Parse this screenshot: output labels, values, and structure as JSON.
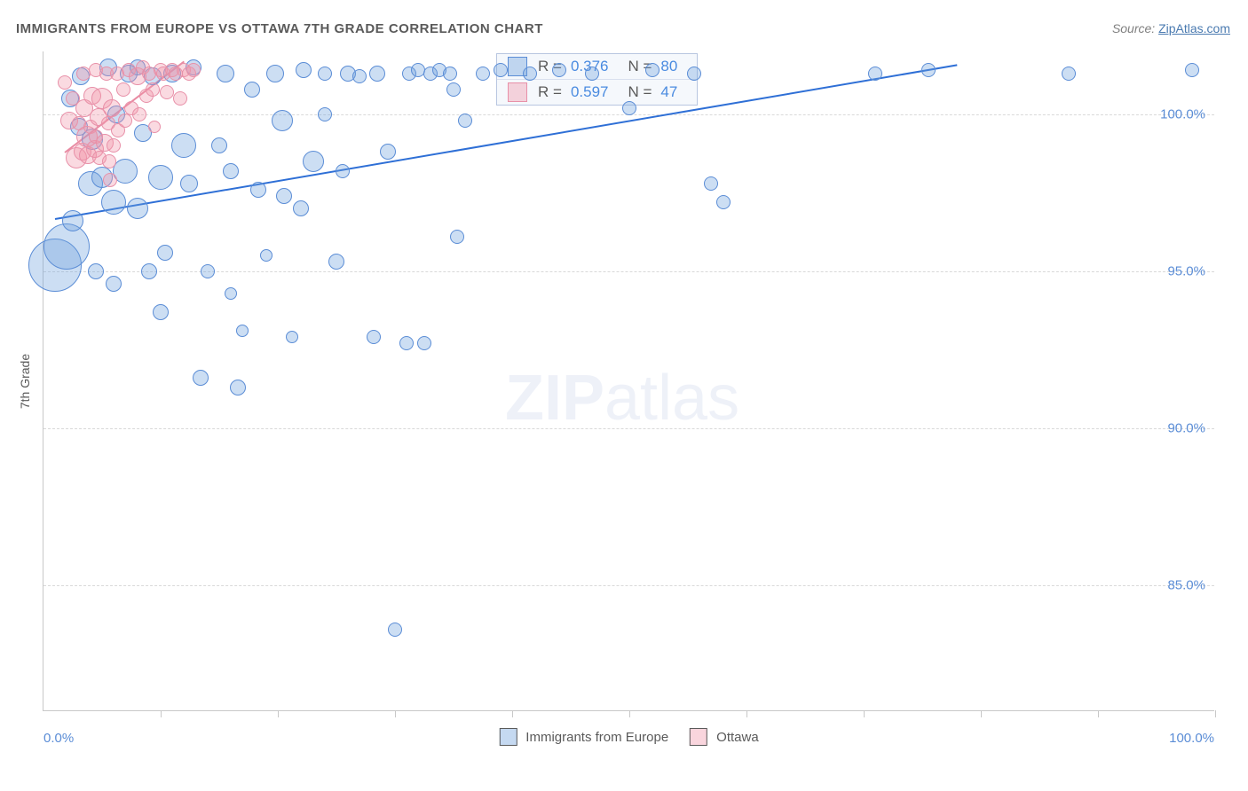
{
  "chart": {
    "type": "scatter",
    "title": "IMMIGRANTS FROM EUROPE VS OTTAWA 7TH GRADE CORRELATION CHART",
    "source_prefix": "Source: ",
    "source_link": "ZipAtlas.com",
    "y_axis_title": "7th Grade",
    "x_min_label": "0.0%",
    "x_max_label": "100.0%",
    "xlim": [
      0,
      100
    ],
    "ylim": [
      81,
      102
    ],
    "y_ticks": [
      85.0,
      90.0,
      95.0,
      100.0
    ],
    "y_tick_labels": [
      "85.0%",
      "90.0%",
      "95.0%",
      "100.0%"
    ],
    "x_ticks": [
      10,
      20,
      30,
      40,
      50,
      60,
      70,
      80,
      90,
      100
    ],
    "background_color": "#ffffff",
    "grid_color": "#d9d9d9",
    "axis_color": "#c8c8c8",
    "tick_label_color": "#5b8dd6",
    "tick_label_fontsize": 15,
    "watermark": "ZIPatlas",
    "legend_top": {
      "rows": [
        {
          "swatch": "blue",
          "r_label": "R =",
          "r_val": "0.376",
          "n_label": "N =",
          "n_val": "80"
        },
        {
          "swatch": "pink",
          "r_label": "R =",
          "r_val": "0.597",
          "n_label": "N =",
          "n_val": "47"
        }
      ]
    },
    "legend_bottom": {
      "items": [
        {
          "swatch": "blue",
          "label": "Immigrants from Europe"
        },
        {
          "swatch": "pink",
          "label": "Ottawa"
        }
      ]
    },
    "series": [
      {
        "name": "Immigrants from Europe",
        "color_fill": "rgba(110,160,220,0.35)",
        "color_border": "#5b8dd6",
        "trend_color": "#2e6fd6",
        "trend": {
          "x1": 1,
          "y1": 96.7,
          "x2": 78,
          "y2": 101.6
        },
        "points": [
          {
            "x": 1,
            "y": 95.2,
            "r": 30
          },
          {
            "x": 2,
            "y": 95.8,
            "r": 26
          },
          {
            "x": 2.3,
            "y": 100.5,
            "r": 10
          },
          {
            "x": 2.5,
            "y": 96.6,
            "r": 12
          },
          {
            "x": 3,
            "y": 99.6,
            "r": 10
          },
          {
            "x": 3.2,
            "y": 101.2,
            "r": 10
          },
          {
            "x": 4,
            "y": 97.8,
            "r": 14
          },
          {
            "x": 4.2,
            "y": 99.2,
            "r": 12
          },
          {
            "x": 4.5,
            "y": 95,
            "r": 9
          },
          {
            "x": 5,
            "y": 98,
            "r": 12
          },
          {
            "x": 5.5,
            "y": 101.5,
            "r": 10
          },
          {
            "x": 6,
            "y": 97.2,
            "r": 14
          },
          {
            "x": 6,
            "y": 94.6,
            "r": 9
          },
          {
            "x": 6.2,
            "y": 100,
            "r": 10
          },
          {
            "x": 7,
            "y": 98.2,
            "r": 14
          },
          {
            "x": 7.3,
            "y": 101.3,
            "r": 10
          },
          {
            "x": 8,
            "y": 97,
            "r": 12
          },
          {
            "x": 8,
            "y": 101.5,
            "r": 9
          },
          {
            "x": 8.5,
            "y": 99.4,
            "r": 10
          },
          {
            "x": 9,
            "y": 95,
            "r": 9
          },
          {
            "x": 9.3,
            "y": 101.2,
            "r": 10
          },
          {
            "x": 10,
            "y": 98,
            "r": 14
          },
          {
            "x": 10,
            "y": 93.7,
            "r": 9
          },
          {
            "x": 10.4,
            "y": 95.6,
            "r": 9
          },
          {
            "x": 11,
            "y": 101.3,
            "r": 10
          },
          {
            "x": 12,
            "y": 99,
            "r": 14
          },
          {
            "x": 12.4,
            "y": 97.8,
            "r": 10
          },
          {
            "x": 12.8,
            "y": 101.5,
            "r": 9
          },
          {
            "x": 13.4,
            "y": 91.6,
            "r": 9
          },
          {
            "x": 14,
            "y": 95,
            "r": 8
          },
          {
            "x": 15,
            "y": 99,
            "r": 9
          },
          {
            "x": 15.5,
            "y": 101.3,
            "r": 10
          },
          {
            "x": 16,
            "y": 98.2,
            "r": 9
          },
          {
            "x": 16,
            "y": 94.3,
            "r": 7
          },
          {
            "x": 16.6,
            "y": 91.3,
            "r": 9
          },
          {
            "x": 17,
            "y": 93.1,
            "r": 7
          },
          {
            "x": 17.8,
            "y": 100.8,
            "r": 9
          },
          {
            "x": 18.3,
            "y": 97.6,
            "r": 9
          },
          {
            "x": 19,
            "y": 95.5,
            "r": 7
          },
          {
            "x": 19.8,
            "y": 101.3,
            "r": 10
          },
          {
            "x": 20.4,
            "y": 99.8,
            "r": 12
          },
          {
            "x": 20.5,
            "y": 97.4,
            "r": 9
          },
          {
            "x": 21.2,
            "y": 92.9,
            "r": 7
          },
          {
            "x": 22,
            "y": 97,
            "r": 9
          },
          {
            "x": 22.2,
            "y": 101.4,
            "r": 9
          },
          {
            "x": 23,
            "y": 98.5,
            "r": 12
          },
          {
            "x": 24,
            "y": 101.3,
            "r": 8
          },
          {
            "x": 24,
            "y": 100,
            "r": 8
          },
          {
            "x": 25,
            "y": 95.3,
            "r": 9
          },
          {
            "x": 25.5,
            "y": 98.2,
            "r": 8
          },
          {
            "x": 26,
            "y": 101.3,
            "r": 9
          },
          {
            "x": 27,
            "y": 101.2,
            "r": 8
          },
          {
            "x": 28.2,
            "y": 92.9,
            "r": 8
          },
          {
            "x": 28.5,
            "y": 101.3,
            "r": 9
          },
          {
            "x": 29.4,
            "y": 98.8,
            "r": 9
          },
          {
            "x": 30,
            "y": 83.6,
            "r": 8
          },
          {
            "x": 31,
            "y": 92.7,
            "r": 8
          },
          {
            "x": 31.2,
            "y": 101.3,
            "r": 8
          },
          {
            "x": 32,
            "y": 101.4,
            "r": 8
          },
          {
            "x": 32.5,
            "y": 92.7,
            "r": 8
          },
          {
            "x": 33,
            "y": 101.3,
            "r": 8
          },
          {
            "x": 33.8,
            "y": 101.4,
            "r": 8
          },
          {
            "x": 34.7,
            "y": 101.3,
            "r": 8
          },
          {
            "x": 35,
            "y": 100.8,
            "r": 8
          },
          {
            "x": 35.3,
            "y": 96.1,
            "r": 8
          },
          {
            "x": 36,
            "y": 99.8,
            "r": 8
          },
          {
            "x": 37.5,
            "y": 101.3,
            "r": 8
          },
          {
            "x": 39,
            "y": 101.4,
            "r": 8
          },
          {
            "x": 41.5,
            "y": 101.3,
            "r": 8
          },
          {
            "x": 44,
            "y": 101.4,
            "r": 8
          },
          {
            "x": 46.8,
            "y": 101.3,
            "r": 8
          },
          {
            "x": 50,
            "y": 100.2,
            "r": 8
          },
          {
            "x": 52,
            "y": 101.4,
            "r": 8
          },
          {
            "x": 55.5,
            "y": 101.3,
            "r": 8
          },
          {
            "x": 57,
            "y": 97.8,
            "r": 8
          },
          {
            "x": 58,
            "y": 97.2,
            "r": 8
          },
          {
            "x": 71,
            "y": 101.3,
            "r": 8
          },
          {
            "x": 75.5,
            "y": 101.4,
            "r": 8
          },
          {
            "x": 87.5,
            "y": 101.3,
            "r": 8
          },
          {
            "x": 98,
            "y": 101.4,
            "r": 8
          }
        ]
      },
      {
        "name": "Ottawa",
        "color_fill": "rgba(240,150,170,0.35)",
        "color_border": "#e890a8",
        "trend_color": "#e88aa2",
        "trend": {
          "x1": 1.8,
          "y1": 98.8,
          "x2": 12,
          "y2": 101.7
        },
        "points": [
          {
            "x": 1.8,
            "y": 101,
            "r": 8
          },
          {
            "x": 2.2,
            "y": 99.8,
            "r": 10
          },
          {
            "x": 2.5,
            "y": 100.5,
            "r": 8
          },
          {
            "x": 2.8,
            "y": 98.6,
            "r": 12
          },
          {
            "x": 3,
            "y": 99.7,
            "r": 8
          },
          {
            "x": 3.3,
            "y": 98.8,
            "r": 10
          },
          {
            "x": 3.4,
            "y": 101.3,
            "r": 8
          },
          {
            "x": 3.5,
            "y": 100.2,
            "r": 10
          },
          {
            "x": 3.7,
            "y": 99.3,
            "r": 12
          },
          {
            "x": 3.8,
            "y": 98.7,
            "r": 10
          },
          {
            "x": 4,
            "y": 99.6,
            "r": 8
          },
          {
            "x": 4.2,
            "y": 100.6,
            "r": 10
          },
          {
            "x": 4.4,
            "y": 98.9,
            "r": 10
          },
          {
            "x": 4.5,
            "y": 101.4,
            "r": 8
          },
          {
            "x": 4.5,
            "y": 99.3,
            "r": 8
          },
          {
            "x": 4.7,
            "y": 99.9,
            "r": 10
          },
          {
            "x": 4.8,
            "y": 98.6,
            "r": 8
          },
          {
            "x": 5,
            "y": 100.5,
            "r": 12
          },
          {
            "x": 5.2,
            "y": 99.1,
            "r": 10
          },
          {
            "x": 5.4,
            "y": 101.3,
            "r": 8
          },
          {
            "x": 5.5,
            "y": 99.7,
            "r": 8
          },
          {
            "x": 5.6,
            "y": 98.5,
            "r": 8
          },
          {
            "x": 5.7,
            "y": 97.9,
            "r": 8
          },
          {
            "x": 5.8,
            "y": 100.2,
            "r": 10
          },
          {
            "x": 6,
            "y": 99,
            "r": 8
          },
          {
            "x": 6.3,
            "y": 101.3,
            "r": 8
          },
          {
            "x": 6.4,
            "y": 99.5,
            "r": 8
          },
          {
            "x": 6.8,
            "y": 100.8,
            "r": 8
          },
          {
            "x": 7,
            "y": 99.8,
            "r": 8
          },
          {
            "x": 7.3,
            "y": 101.4,
            "r": 8
          },
          {
            "x": 7.5,
            "y": 100.2,
            "r": 8
          },
          {
            "x": 8,
            "y": 101.2,
            "r": 10
          },
          {
            "x": 8.2,
            "y": 100,
            "r": 8
          },
          {
            "x": 8.5,
            "y": 101.5,
            "r": 8
          },
          {
            "x": 8.8,
            "y": 100.6,
            "r": 8
          },
          {
            "x": 9,
            "y": 101.3,
            "r": 8
          },
          {
            "x": 9.3,
            "y": 100.8,
            "r": 8
          },
          {
            "x": 9.5,
            "y": 99.6,
            "r": 7
          },
          {
            "x": 10,
            "y": 101.4,
            "r": 8
          },
          {
            "x": 10.2,
            "y": 101.3,
            "r": 8
          },
          {
            "x": 10.5,
            "y": 100.7,
            "r": 8
          },
          {
            "x": 11,
            "y": 101.4,
            "r": 8
          },
          {
            "x": 11.3,
            "y": 101.3,
            "r": 8
          },
          {
            "x": 11.7,
            "y": 100.5,
            "r": 8
          },
          {
            "x": 12,
            "y": 101.4,
            "r": 8
          },
          {
            "x": 12.4,
            "y": 101.3,
            "r": 8
          },
          {
            "x": 12.8,
            "y": 101.4,
            "r": 8
          }
        ]
      }
    ]
  }
}
